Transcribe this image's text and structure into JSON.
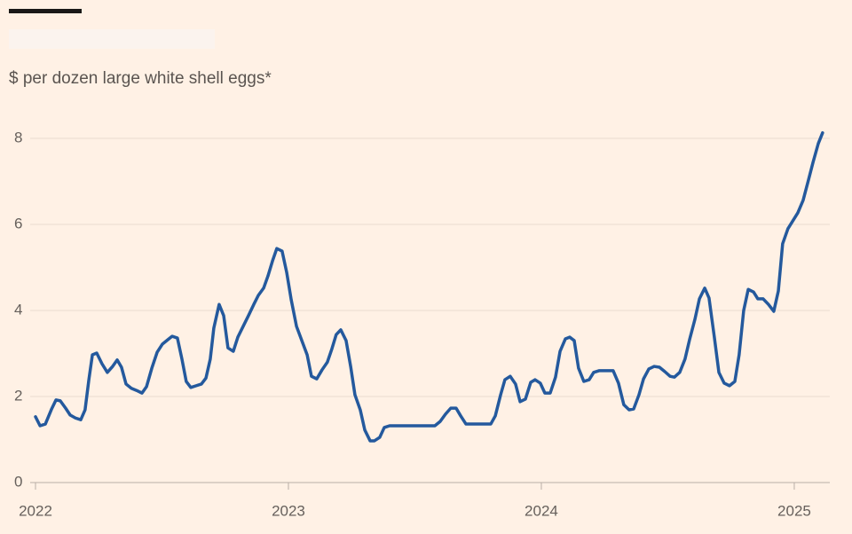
{
  "chart_data": {
    "type": "line",
    "subtitle": "$ per dozen large white shell eggs*",
    "series": [
      {
        "color": "#24599d",
        "x": [
          2022.0,
          2022.018,
          2022.039,
          2022.063,
          2022.081,
          2022.098,
          2022.119,
          2022.137,
          2022.158,
          2022.179,
          2022.196,
          2022.211,
          2022.225,
          2022.242,
          2022.263,
          2022.284,
          2022.305,
          2022.323,
          2022.34,
          2022.358,
          2022.379,
          2022.4,
          2022.421,
          2022.439,
          2022.46,
          2022.481,
          2022.502,
          2022.523,
          2022.54,
          2022.561,
          2022.579,
          2022.596,
          2022.614,
          2022.635,
          2022.656,
          2022.674,
          2022.691,
          2022.705,
          2022.726,
          2022.744,
          2022.761,
          2022.782,
          2022.8,
          2022.821,
          2022.842,
          2022.863,
          2022.881,
          2022.902,
          2022.919,
          2022.937,
          2022.954,
          2022.975,
          2022.993,
          2023.011,
          2023.032,
          2023.053,
          2023.074,
          2023.091,
          2023.112,
          2023.133,
          2023.154,
          2023.172,
          2023.189,
          2023.207,
          2023.228,
          2023.246,
          2023.263,
          2023.284,
          2023.302,
          2023.323,
          2023.34,
          2023.361,
          2023.379,
          2023.4,
          2023.439,
          2023.481,
          2023.523,
          2023.558,
          2023.579,
          2023.6,
          2023.621,
          2023.642,
          2023.663,
          2023.681,
          2023.702,
          2023.723,
          2023.761,
          2023.8,
          2023.818,
          2023.839,
          2023.856,
          2023.877,
          2023.898,
          2023.916,
          2023.937,
          2023.958,
          2023.975,
          2023.996,
          2024.014,
          2024.035,
          2024.056,
          2024.074,
          2024.095,
          2024.112,
          2024.13,
          2024.147,
          2024.168,
          2024.189,
          2024.207,
          2024.228,
          2024.249,
          2024.284,
          2024.305,
          2024.326,
          2024.347,
          2024.365,
          2024.386,
          2024.404,
          2024.425,
          2024.446,
          2024.467,
          2024.488,
          2024.509,
          2024.526,
          2024.547,
          2024.568,
          2024.586,
          2024.607,
          2024.625,
          2024.646,
          2024.663,
          2024.684,
          2024.702,
          2024.723,
          2024.744,
          2024.765,
          2024.782,
          2024.8,
          2024.818,
          2024.839,
          2024.856,
          2024.877,
          2024.898,
          2024.919,
          2024.937,
          2024.954,
          2024.975,
          2024.996,
          2025.014,
          2025.035,
          2025.056,
          2025.074,
          2025.095,
          2025.112
        ],
        "values": [
          1.53,
          1.32,
          1.36,
          1.7,
          1.92,
          1.9,
          1.73,
          1.57,
          1.5,
          1.46,
          1.69,
          2.39,
          2.97,
          3.01,
          2.76,
          2.56,
          2.7,
          2.85,
          2.68,
          2.29,
          2.19,
          2.14,
          2.08,
          2.23,
          2.66,
          3.03,
          3.22,
          3.32,
          3.4,
          3.36,
          2.87,
          2.35,
          2.21,
          2.25,
          2.29,
          2.43,
          2.87,
          3.59,
          4.14,
          3.88,
          3.13,
          3.05,
          3.38,
          3.63,
          3.88,
          4.14,
          4.35,
          4.52,
          4.8,
          5.15,
          5.44,
          5.38,
          4.89,
          4.25,
          3.63,
          3.3,
          2.97,
          2.47,
          2.41,
          2.62,
          2.8,
          3.11,
          3.44,
          3.55,
          3.3,
          2.7,
          2.04,
          1.69,
          1.22,
          0.97,
          0.97,
          1.05,
          1.28,
          1.32,
          1.32,
          1.32,
          1.32,
          1.32,
          1.32,
          1.42,
          1.59,
          1.73,
          1.73,
          1.55,
          1.36,
          1.36,
          1.36,
          1.36,
          1.55,
          2.04,
          2.39,
          2.47,
          2.29,
          1.88,
          1.94,
          2.33,
          2.39,
          2.31,
          2.08,
          2.08,
          2.45,
          3.05,
          3.34,
          3.38,
          3.3,
          2.66,
          2.35,
          2.39,
          2.56,
          2.6,
          2.6,
          2.6,
          2.31,
          1.81,
          1.69,
          1.71,
          2.04,
          2.41,
          2.64,
          2.7,
          2.68,
          2.58,
          2.47,
          2.45,
          2.56,
          2.87,
          3.32,
          3.79,
          4.27,
          4.52,
          4.29,
          3.38,
          2.56,
          2.31,
          2.25,
          2.35,
          2.97,
          4.0,
          4.49,
          4.43,
          4.27,
          4.27,
          4.14,
          3.98,
          4.45,
          5.55,
          5.9,
          6.1,
          6.27,
          6.56,
          7.03,
          7.44,
          7.88,
          8.13
        ]
      }
    ],
    "xlim": [
      2022,
      2025.123
    ],
    "xticks": [
      2022,
      2023,
      2024,
      2025
    ],
    "ylim": [
      0,
      8
    ],
    "yticks": [
      0,
      2,
      4,
      6,
      8
    ],
    "grid": true
  }
}
